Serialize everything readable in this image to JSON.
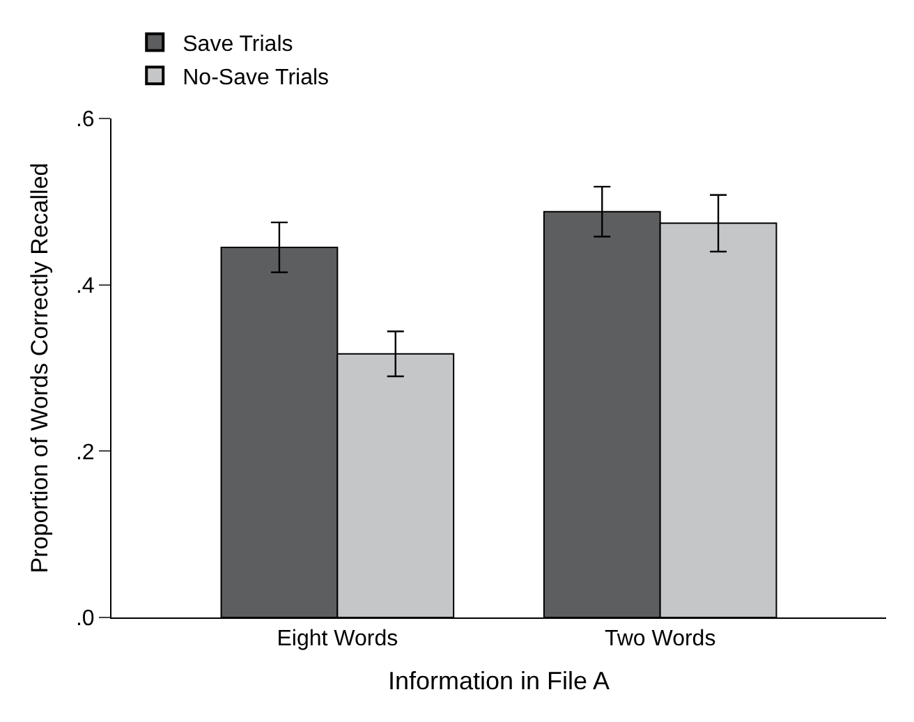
{
  "chart_data": {
    "type": "bar",
    "xlabel": "Information in File A",
    "ylabel": "Proportion of Words Correctly Recalled",
    "categories": [
      "Eight Words",
      "Two Words"
    ],
    "series": [
      {
        "name": "Save Trials",
        "color": "#5d5e60",
        "values": [
          0.445,
          0.488
        ],
        "errors": [
          0.03,
          0.03
        ]
      },
      {
        "name": "No-Save Trials",
        "color": "#c5c6c8",
        "values": [
          0.317,
          0.474
        ],
        "errors": [
          0.027,
          0.034
        ]
      }
    ],
    "ylim": [
      0,
      0.6
    ],
    "yticks": [
      {
        "value": 0,
        "label": ".0"
      },
      {
        "value": 0.2,
        "label": ".2"
      },
      {
        "value": 0.4,
        "label": ".4"
      },
      {
        "value": 0.6,
        "label": ".6"
      }
    ],
    "legend": "top left"
  }
}
